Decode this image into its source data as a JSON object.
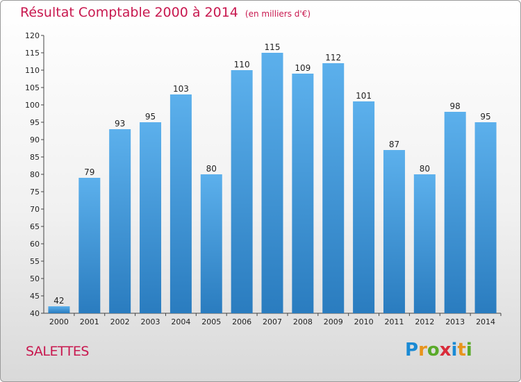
{
  "header": {
    "title": "Résultat Comptable 2000 à 2014",
    "subtitle": "(en milliers d'€)"
  },
  "footer": {
    "commune": "SALETTES",
    "logo_text": "Proxiti"
  },
  "colors": {
    "title": "#c8184f",
    "bar_top": "#5cb0ec",
    "bar_bottom": "#2a7cbf"
  },
  "chart_data": {
    "type": "bar",
    "title": "Résultat Comptable 2000 à 2014",
    "subtitle": "(en milliers d'€)",
    "categories": [
      "2000",
      "2001",
      "2002",
      "2003",
      "2004",
      "2005",
      "2006",
      "2007",
      "2008",
      "2009",
      "2010",
      "2011",
      "2012",
      "2013",
      "2014"
    ],
    "values": [
      42,
      79,
      93,
      95,
      103,
      80,
      110,
      115,
      109,
      112,
      101,
      87,
      80,
      98,
      95
    ],
    "ylim": [
      40,
      120
    ],
    "yticks": [
      40,
      45,
      50,
      55,
      60,
      65,
      70,
      75,
      80,
      85,
      90,
      95,
      100,
      105,
      110,
      115,
      120
    ],
    "xlabel": "",
    "ylabel": "",
    "grid": false,
    "legend": "none"
  }
}
